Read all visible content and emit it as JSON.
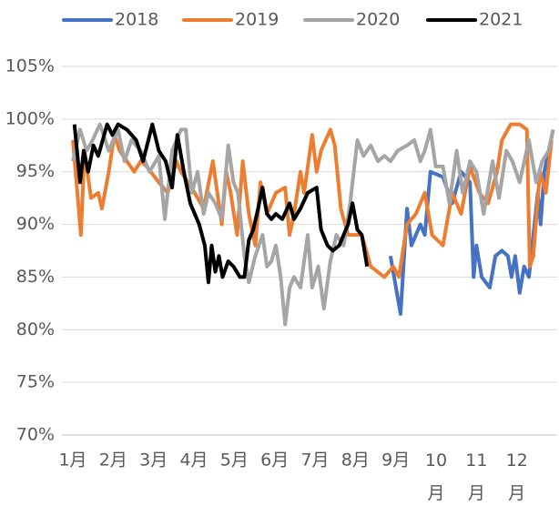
{
  "chart_data": {
    "type": "line",
    "xlim": [
      1,
      13
    ],
    "xticks": [
      {
        "value": 1,
        "label": "1月"
      },
      {
        "value": 2,
        "label": "2月"
      },
      {
        "value": 3,
        "label": "3月"
      },
      {
        "value": 4,
        "label": "4月"
      },
      {
        "value": 5,
        "label": "5月"
      },
      {
        "value": 6,
        "label": "6月"
      },
      {
        "value": 7,
        "label": "7月"
      },
      {
        "value": 8,
        "label": "8月"
      },
      {
        "value": 9,
        "label": "9月"
      },
      {
        "value": 10,
        "label": "10月"
      },
      {
        "value": 11,
        "label": "11月"
      },
      {
        "value": 12,
        "label": "12月"
      }
    ],
    "ylim": [
      70,
      105
    ],
    "yticks": [
      {
        "value": 70,
        "label": "70%"
      },
      {
        "value": 75,
        "label": "75%"
      },
      {
        "value": 80,
        "label": "80%"
      },
      {
        "value": 85,
        "label": "85%"
      },
      {
        "value": 90,
        "label": "90%"
      },
      {
        "value": 95,
        "label": "95%"
      },
      {
        "value": 100,
        "label": "100%"
      },
      {
        "value": 105,
        "label": "105%"
      }
    ],
    "grid": true,
    "legend": "top",
    "series": [
      {
        "name": "2018",
        "color": "#4472c4",
        "x": [
          8.87,
          9.12,
          9.28,
          9.39,
          9.61,
          9.72,
          9.86,
          10.17,
          10.4,
          10.62,
          10.84,
          10.93,
          11.0,
          11.13,
          11.33,
          11.47,
          11.63,
          11.78,
          11.87,
          11.96,
          12.07,
          12.18,
          12.3,
          12.52,
          12.59,
          12.68,
          12.79,
          12.9
        ],
        "values": [
          87,
          81.5,
          91.5,
          88,
          90,
          89,
          95,
          94.5,
          92,
          95,
          94,
          85,
          88,
          85,
          84,
          87,
          87.5,
          87,
          85,
          87,
          83.5,
          86,
          85,
          93,
          90,
          95,
          97,
          99
        ]
      },
      {
        "name": "2019",
        "color": "#ed7d31",
        "x": [
          1.0,
          1.09,
          1.2,
          1.29,
          1.45,
          1.63,
          1.72,
          1.89,
          2.03,
          2.16,
          2.34,
          2.52,
          2.68,
          2.83,
          3.13,
          3.35,
          3.57,
          3.68,
          4.02,
          4.24,
          4.47,
          4.69,
          4.8,
          4.91,
          5.07,
          5.21,
          5.36,
          5.52,
          5.65,
          5.81,
          6.03,
          6.26,
          6.37,
          6.48,
          6.64,
          6.73,
          6.93,
          7.04,
          7.15,
          7.38,
          7.49,
          7.64,
          7.82,
          8.16,
          8.38,
          8.72,
          8.94,
          9.08,
          9.28,
          9.5,
          9.72,
          9.9,
          10.17,
          10.4,
          10.62,
          10.84,
          11.07,
          11.29,
          11.51,
          11.63,
          11.85,
          12.07,
          12.25,
          12.32,
          12.41,
          12.57,
          12.72,
          12.86
        ],
        "values": [
          98,
          94,
          89,
          97,
          92.5,
          93,
          91.5,
          95,
          98.5,
          97,
          96,
          95,
          96,
          95.5,
          94,
          93,
          96,
          95,
          93,
          91.5,
          96,
          90,
          95,
          93,
          89,
          96,
          91,
          88,
          94,
          91,
          93,
          93.5,
          89,
          91,
          95,
          93,
          98.5,
          95,
          97,
          99,
          97.5,
          91.5,
          89,
          89,
          86,
          85,
          86,
          85,
          90,
          91,
          93,
          89,
          88,
          93,
          91,
          95.5,
          93,
          92,
          95,
          98,
          99.5,
          99.5,
          99,
          86,
          87,
          95,
          93,
          98
        ]
      },
      {
        "name": "2020",
        "color": "#a5a5a5",
        "x": [
          1.0,
          1.18,
          1.34,
          1.49,
          1.67,
          1.89,
          2.12,
          2.28,
          2.45,
          2.68,
          2.9,
          3.13,
          3.28,
          3.46,
          3.68,
          3.8,
          3.95,
          4.09,
          4.24,
          4.36,
          4.53,
          4.69,
          4.85,
          4.98,
          5.09,
          5.25,
          5.36,
          5.52,
          5.7,
          5.81,
          5.92,
          6.03,
          6.15,
          6.26,
          6.37,
          6.48,
          6.64,
          6.82,
          6.93,
          7.08,
          7.22,
          7.38,
          7.53,
          7.71,
          7.87,
          8.05,
          8.2,
          8.38,
          8.56,
          8.72,
          8.87,
          9.05,
          9.28,
          9.46,
          9.61,
          9.72,
          9.86,
          9.99,
          10.17,
          10.33,
          10.51,
          10.66,
          10.84,
          11.0,
          11.18,
          11.4,
          11.56,
          11.74,
          11.89,
          12.07,
          12.3,
          12.48,
          12.63,
          12.79,
          12.9
        ],
        "values": [
          96,
          99,
          97,
          98,
          99.5,
          97,
          99,
          96,
          98,
          97,
          95,
          96.5,
          90.5,
          97,
          99,
          99,
          93,
          95,
          91,
          93,
          92,
          90.5,
          97.5,
          94,
          93,
          87,
          84.5,
          87,
          89,
          86,
          86.5,
          88,
          85,
          80.5,
          84,
          85,
          84,
          89,
          84,
          86,
          82,
          86.5,
          89,
          88,
          92,
          98,
          96.5,
          97.5,
          96,
          96.5,
          96,
          97,
          97.5,
          98,
          96,
          97,
          99,
          95.5,
          95.5,
          92,
          97,
          93,
          96,
          95,
          91,
          96,
          92.5,
          97,
          96,
          94,
          98,
          94,
          96,
          97,
          99
        ]
      },
      {
        "name": "2021",
        "color": "#000000",
        "x": [
          1.04,
          1.18,
          1.27,
          1.38,
          1.51,
          1.63,
          1.74,
          1.85,
          1.98,
          2.12,
          2.34,
          2.57,
          2.74,
          2.97,
          3.13,
          3.3,
          3.46,
          3.59,
          3.75,
          3.91,
          4.13,
          4.27,
          4.36,
          4.44,
          4.53,
          4.62,
          4.71,
          4.85,
          4.98,
          5.14,
          5.25,
          5.36,
          5.47,
          5.59,
          5.7,
          5.81,
          5.92,
          6.03,
          6.19,
          6.37,
          6.48,
          6.64,
          6.82,
          7.04,
          7.15,
          7.31,
          7.44,
          7.6,
          7.82,
          7.93,
          8.05,
          8.16,
          8.29
        ],
        "values": [
          99.5,
          94,
          97,
          95,
          97.5,
          96.5,
          98,
          99.5,
          98.5,
          99.5,
          99,
          98,
          96,
          99.5,
          97,
          96,
          93.5,
          98.5,
          95,
          92,
          90,
          88,
          84.5,
          88,
          85.5,
          87,
          85,
          86.5,
          86,
          85,
          85,
          88.5,
          89.5,
          91.5,
          93.5,
          91,
          90.5,
          91,
          90.5,
          92,
          90.5,
          91.5,
          93,
          93.5,
          89.5,
          88,
          87.5,
          88,
          90,
          92,
          89.5,
          89,
          86
        ]
      }
    ]
  }
}
